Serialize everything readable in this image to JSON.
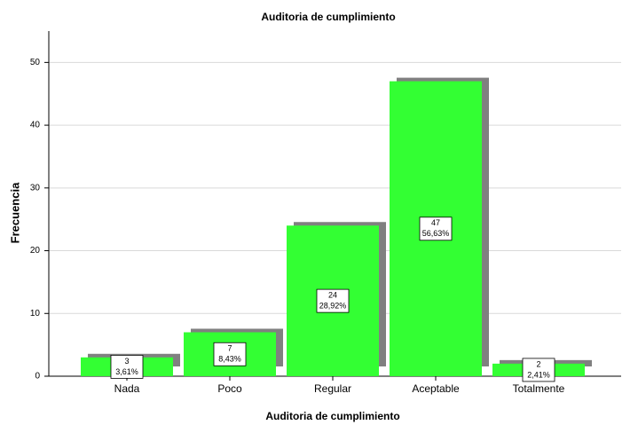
{
  "chart_data": {
    "type": "bar",
    "title": "Auditoria de cumplimiento",
    "xlabel": "Auditoria de cumplimiento",
    "ylabel": "Frecuencia",
    "categories": [
      "Nada",
      "Poco",
      "Regular",
      "Aceptable",
      "Totalmente"
    ],
    "values": [
      3,
      7,
      24,
      47,
      2
    ],
    "percent": [
      3.61,
      8.43,
      28.92,
      56.63,
      2.41
    ],
    "percent_labels": [
      "3,61%",
      "8,43%",
      "28,92%",
      "56,63%",
      "2,41%"
    ],
    "color": "#33ff33",
    "shadow_color": "#808080",
    "ylim": [
      0,
      55
    ],
    "yticks": [
      0,
      10,
      20,
      30,
      40,
      50
    ],
    "grid": true
  }
}
